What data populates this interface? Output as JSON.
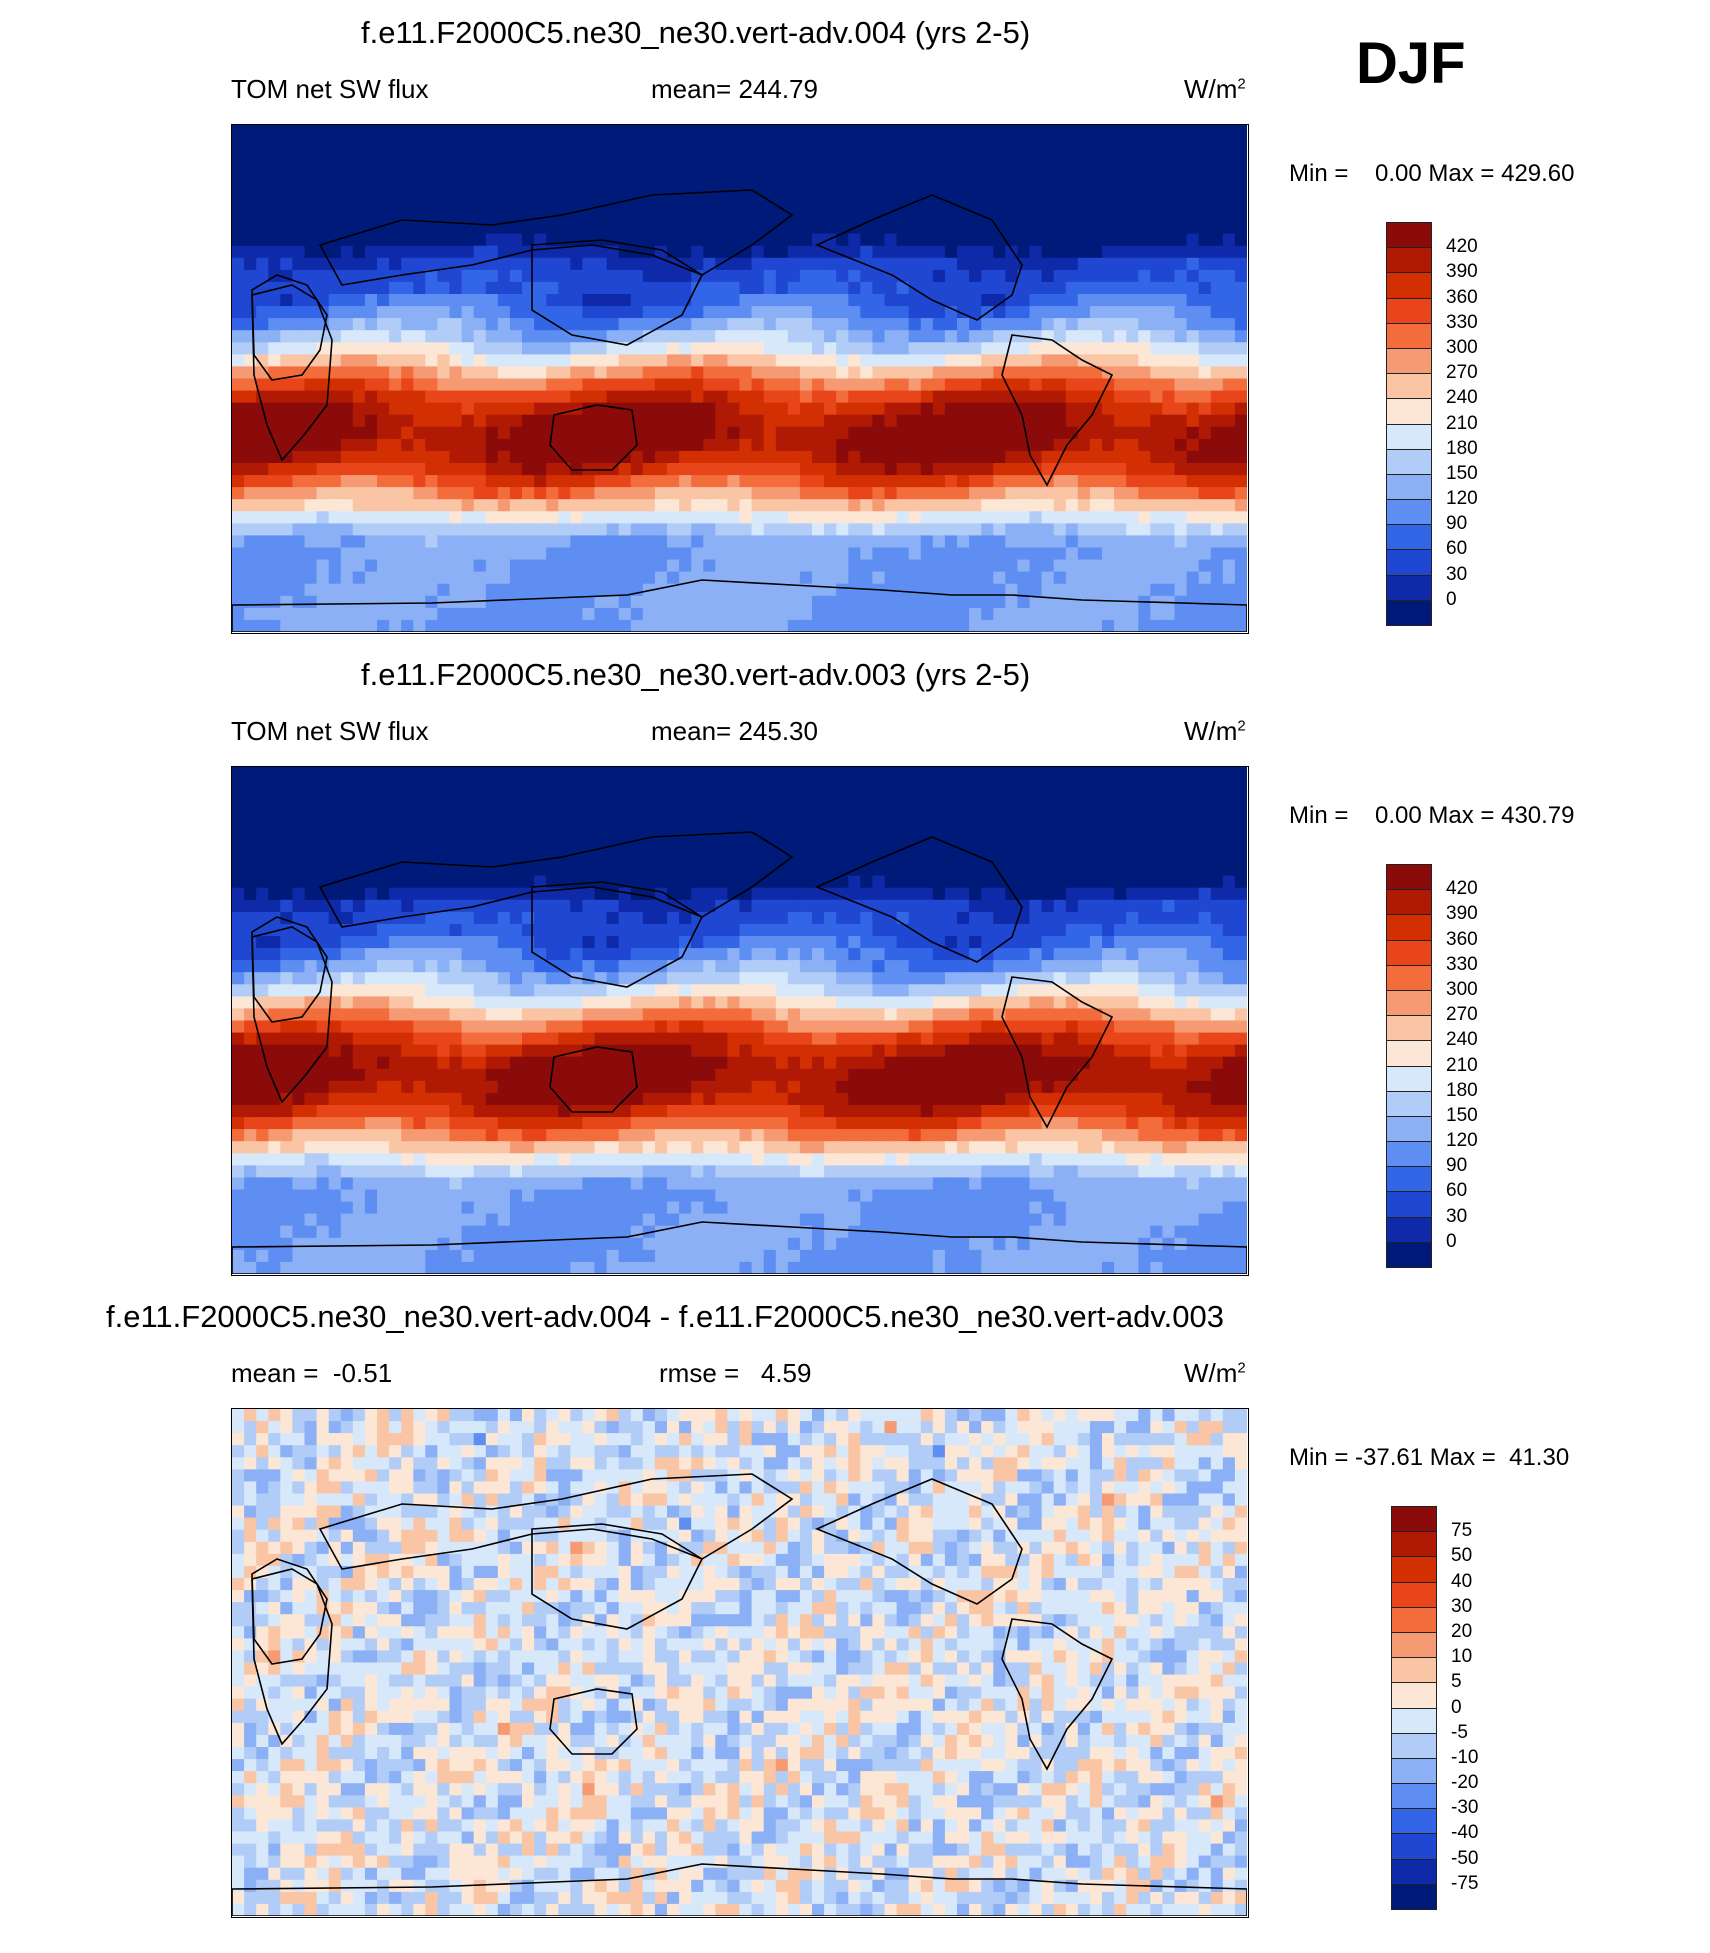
{
  "season": "DJF",
  "panels": [
    {
      "title": "f.e11.F2000C5.ne30_ne30.vert-adv.004 (yrs 2-5)",
      "left_label": "TOM net SW flux",
      "center_label": "mean= 244.79",
      "units": "W/m",
      "units_sup": "2",
      "minmax": "Min =    0.00 Max = 429.60",
      "field": "abs",
      "colorbar": {
        "levels": [
          "420",
          "390",
          "360",
          "330",
          "300",
          "270",
          "240",
          "210",
          "180",
          "150",
          "120",
          "90",
          "60",
          "30",
          "0"
        ],
        "colors": [
          "#8b0a0a",
          "#b01a05",
          "#d23003",
          "#e8461a",
          "#f26c3c",
          "#f59a72",
          "#f9c5a5",
          "#fce7d6",
          "#d7e8fa",
          "#b1cdf7",
          "#8bb0f5",
          "#5e8ef2",
          "#3366e6",
          "#1f47d1",
          "#0f2aa8",
          "#001a7a"
        ]
      }
    },
    {
      "title": "f.e11.F2000C5.ne30_ne30.vert-adv.003 (yrs 2-5)",
      "left_label": "TOM net SW flux",
      "center_label": "mean= 245.30",
      "units": "W/m",
      "units_sup": "2",
      "minmax": "Min =    0.00 Max = 430.79",
      "field": "abs",
      "colorbar": {
        "levels": [
          "420",
          "390",
          "360",
          "330",
          "300",
          "270",
          "240",
          "210",
          "180",
          "150",
          "120",
          "90",
          "60",
          "30",
          "0"
        ],
        "colors": [
          "#8b0a0a",
          "#b01a05",
          "#d23003",
          "#e8461a",
          "#f26c3c",
          "#f59a72",
          "#f9c5a5",
          "#fce7d6",
          "#d7e8fa",
          "#b1cdf7",
          "#8bb0f5",
          "#5e8ef2",
          "#3366e6",
          "#1f47d1",
          "#0f2aa8",
          "#001a7a"
        ]
      }
    },
    {
      "title": "f.e11.F2000C5.ne30_ne30.vert-adv.004 - f.e11.F2000C5.ne30_ne30.vert-adv.003",
      "left_label": "mean =  -0.51",
      "center_label": "rmse =   4.59",
      "units": "W/m",
      "units_sup": "2",
      "minmax": "Min = -37.61 Max =  41.30",
      "field": "diff",
      "colorbar": {
        "levels": [
          "75",
          "50",
          "40",
          "30",
          "20",
          "10",
          "5",
          "0",
          "-5",
          "-10",
          "-20",
          "-30",
          "-40",
          "-50",
          "-75"
        ],
        "colors": [
          "#8b0a0a",
          "#b01a05",
          "#d23003",
          "#e8461a",
          "#f26c3c",
          "#f59a72",
          "#f9c5a5",
          "#fce7d6",
          "#d7e8fa",
          "#b1cdf7",
          "#8bb0f5",
          "#5e8ef2",
          "#3366e6",
          "#1f47d1",
          "#0f2aa8",
          "#001a7a"
        ]
      }
    }
  ]
}
